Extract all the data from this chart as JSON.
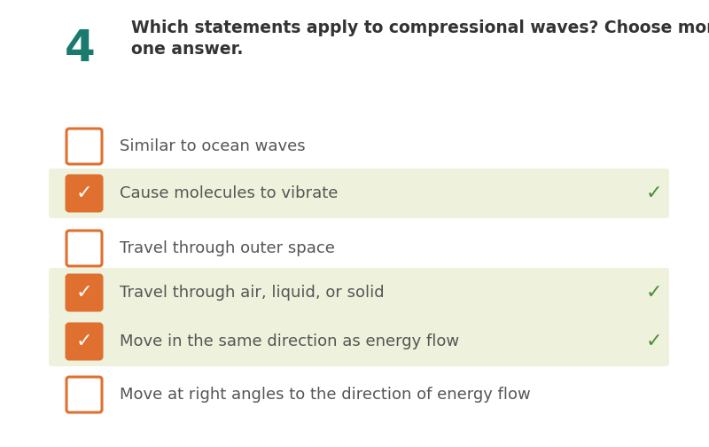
{
  "question_number": "4",
  "question_number_color": "#1a7a6e",
  "question_line1": "Which statements apply to compressional waves? Choose more than",
  "question_line2": "one answer.",
  "question_text_color": "#333333",
  "background_color": "#ffffff",
  "options": [
    {
      "text": "Similar to ocean waves",
      "checked": false,
      "correct": false
    },
    {
      "text": "Cause molecules to vibrate",
      "checked": true,
      "correct": true
    },
    {
      "text": "Travel through outer space",
      "checked": false,
      "correct": false
    },
    {
      "text": "Travel through air, liquid, or solid",
      "checked": true,
      "correct": true
    },
    {
      "text": "Move in the same direction as energy flow",
      "checked": true,
      "correct": true
    },
    {
      "text": "Move at right angles to the direction of energy flow",
      "checked": false,
      "correct": false
    }
  ],
  "checkbox_border_color": "#e07030",
  "checkbox_checked_bg": "#e07030",
  "checkbox_unchecked_bg": "#ffffff",
  "row_highlight_color": "#eef2dc",
  "correct_checkmark_color": "#4a8c3c",
  "text_color": "#555555",
  "font_size": 13,
  "question_font_size": 13.5
}
